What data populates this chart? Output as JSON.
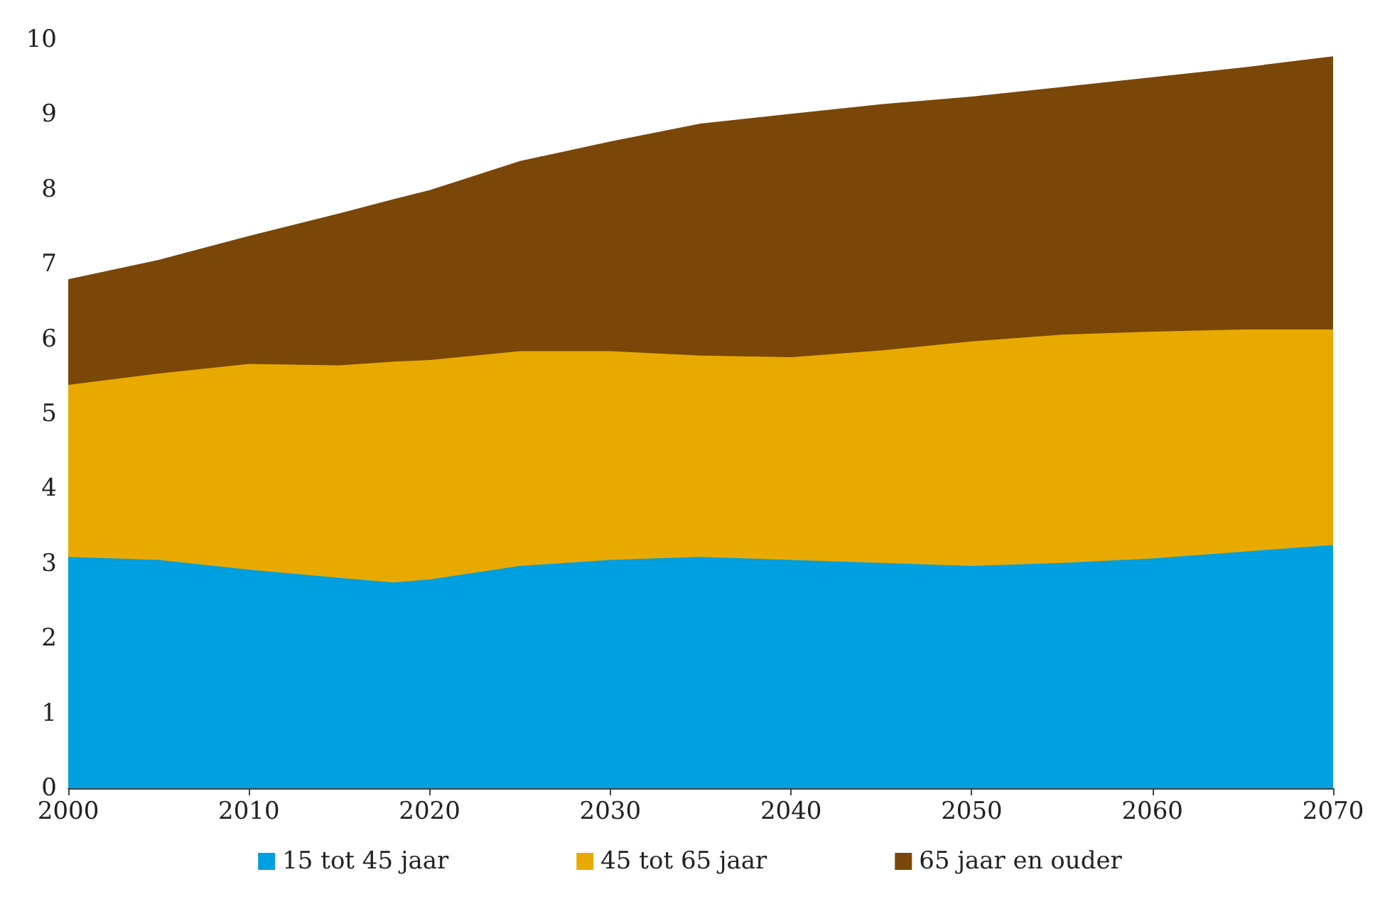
{
  "chart_data": {
    "type": "area",
    "stacked": true,
    "x": [
      2000,
      2005,
      2010,
      2015,
      2018,
      2020,
      2025,
      2030,
      2035,
      2040,
      2045,
      2050,
      2055,
      2060,
      2065,
      2070
    ],
    "series": [
      {
        "name": "15 tot 45 jaar",
        "color": "#009fdf",
        "values": [
          3.09,
          3.05,
          2.92,
          2.81,
          2.75,
          2.79,
          2.97,
          3.05,
          3.09,
          3.05,
          3.01,
          2.97,
          3.01,
          3.07,
          3.16,
          3.25
        ]
      },
      {
        "name": "45 tot 65 jaar",
        "color": "#e8aa00",
        "values": [
          2.3,
          2.49,
          2.75,
          2.84,
          2.95,
          2.93,
          2.87,
          2.79,
          2.69,
          2.71,
          2.84,
          3.0,
          3.05,
          3.03,
          2.97,
          2.88
        ]
      },
      {
        "name": "65 jaar en ouder",
        "color": "#7a4709",
        "values": [
          1.41,
          1.52,
          1.71,
          2.03,
          2.17,
          2.27,
          2.54,
          2.8,
          3.1,
          3.25,
          3.29,
          3.27,
          3.31,
          3.4,
          3.5,
          3.65
        ]
      }
    ],
    "xlim": [
      2000,
      2070
    ],
    "xticks": [
      2000,
      2010,
      2020,
      2030,
      2040,
      2050,
      2060,
      2070
    ],
    "ylim": [
      0,
      10
    ],
    "yticks": [
      0,
      1,
      2,
      3,
      4,
      5,
      6,
      7,
      8,
      9,
      10
    ],
    "grid": false,
    "legend": "bottom"
  }
}
